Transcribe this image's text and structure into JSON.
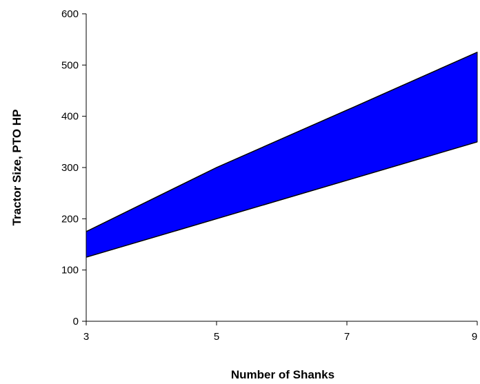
{
  "chart_data": {
    "type": "area",
    "xlabel": "Number of Shanks",
    "ylabel": "Tractor Size, PTO HP",
    "xlim": [
      3,
      9
    ],
    "ylim": [
      0,
      600
    ],
    "x_ticks": [
      "3",
      "5",
      "7",
      "9"
    ],
    "y_ticks": [
      "0",
      "100",
      "200",
      "300",
      "400",
      "500",
      "600"
    ],
    "x": [
      3,
      5,
      7,
      9
    ],
    "series": [
      {
        "role": "lower",
        "values": [
          125,
          200,
          275,
          350
        ]
      },
      {
        "role": "upper",
        "values": [
          175,
          300,
          412,
          525
        ]
      }
    ],
    "fill_color": "#0000ff",
    "line_color": "#000000",
    "grid": false,
    "legend": "none"
  }
}
